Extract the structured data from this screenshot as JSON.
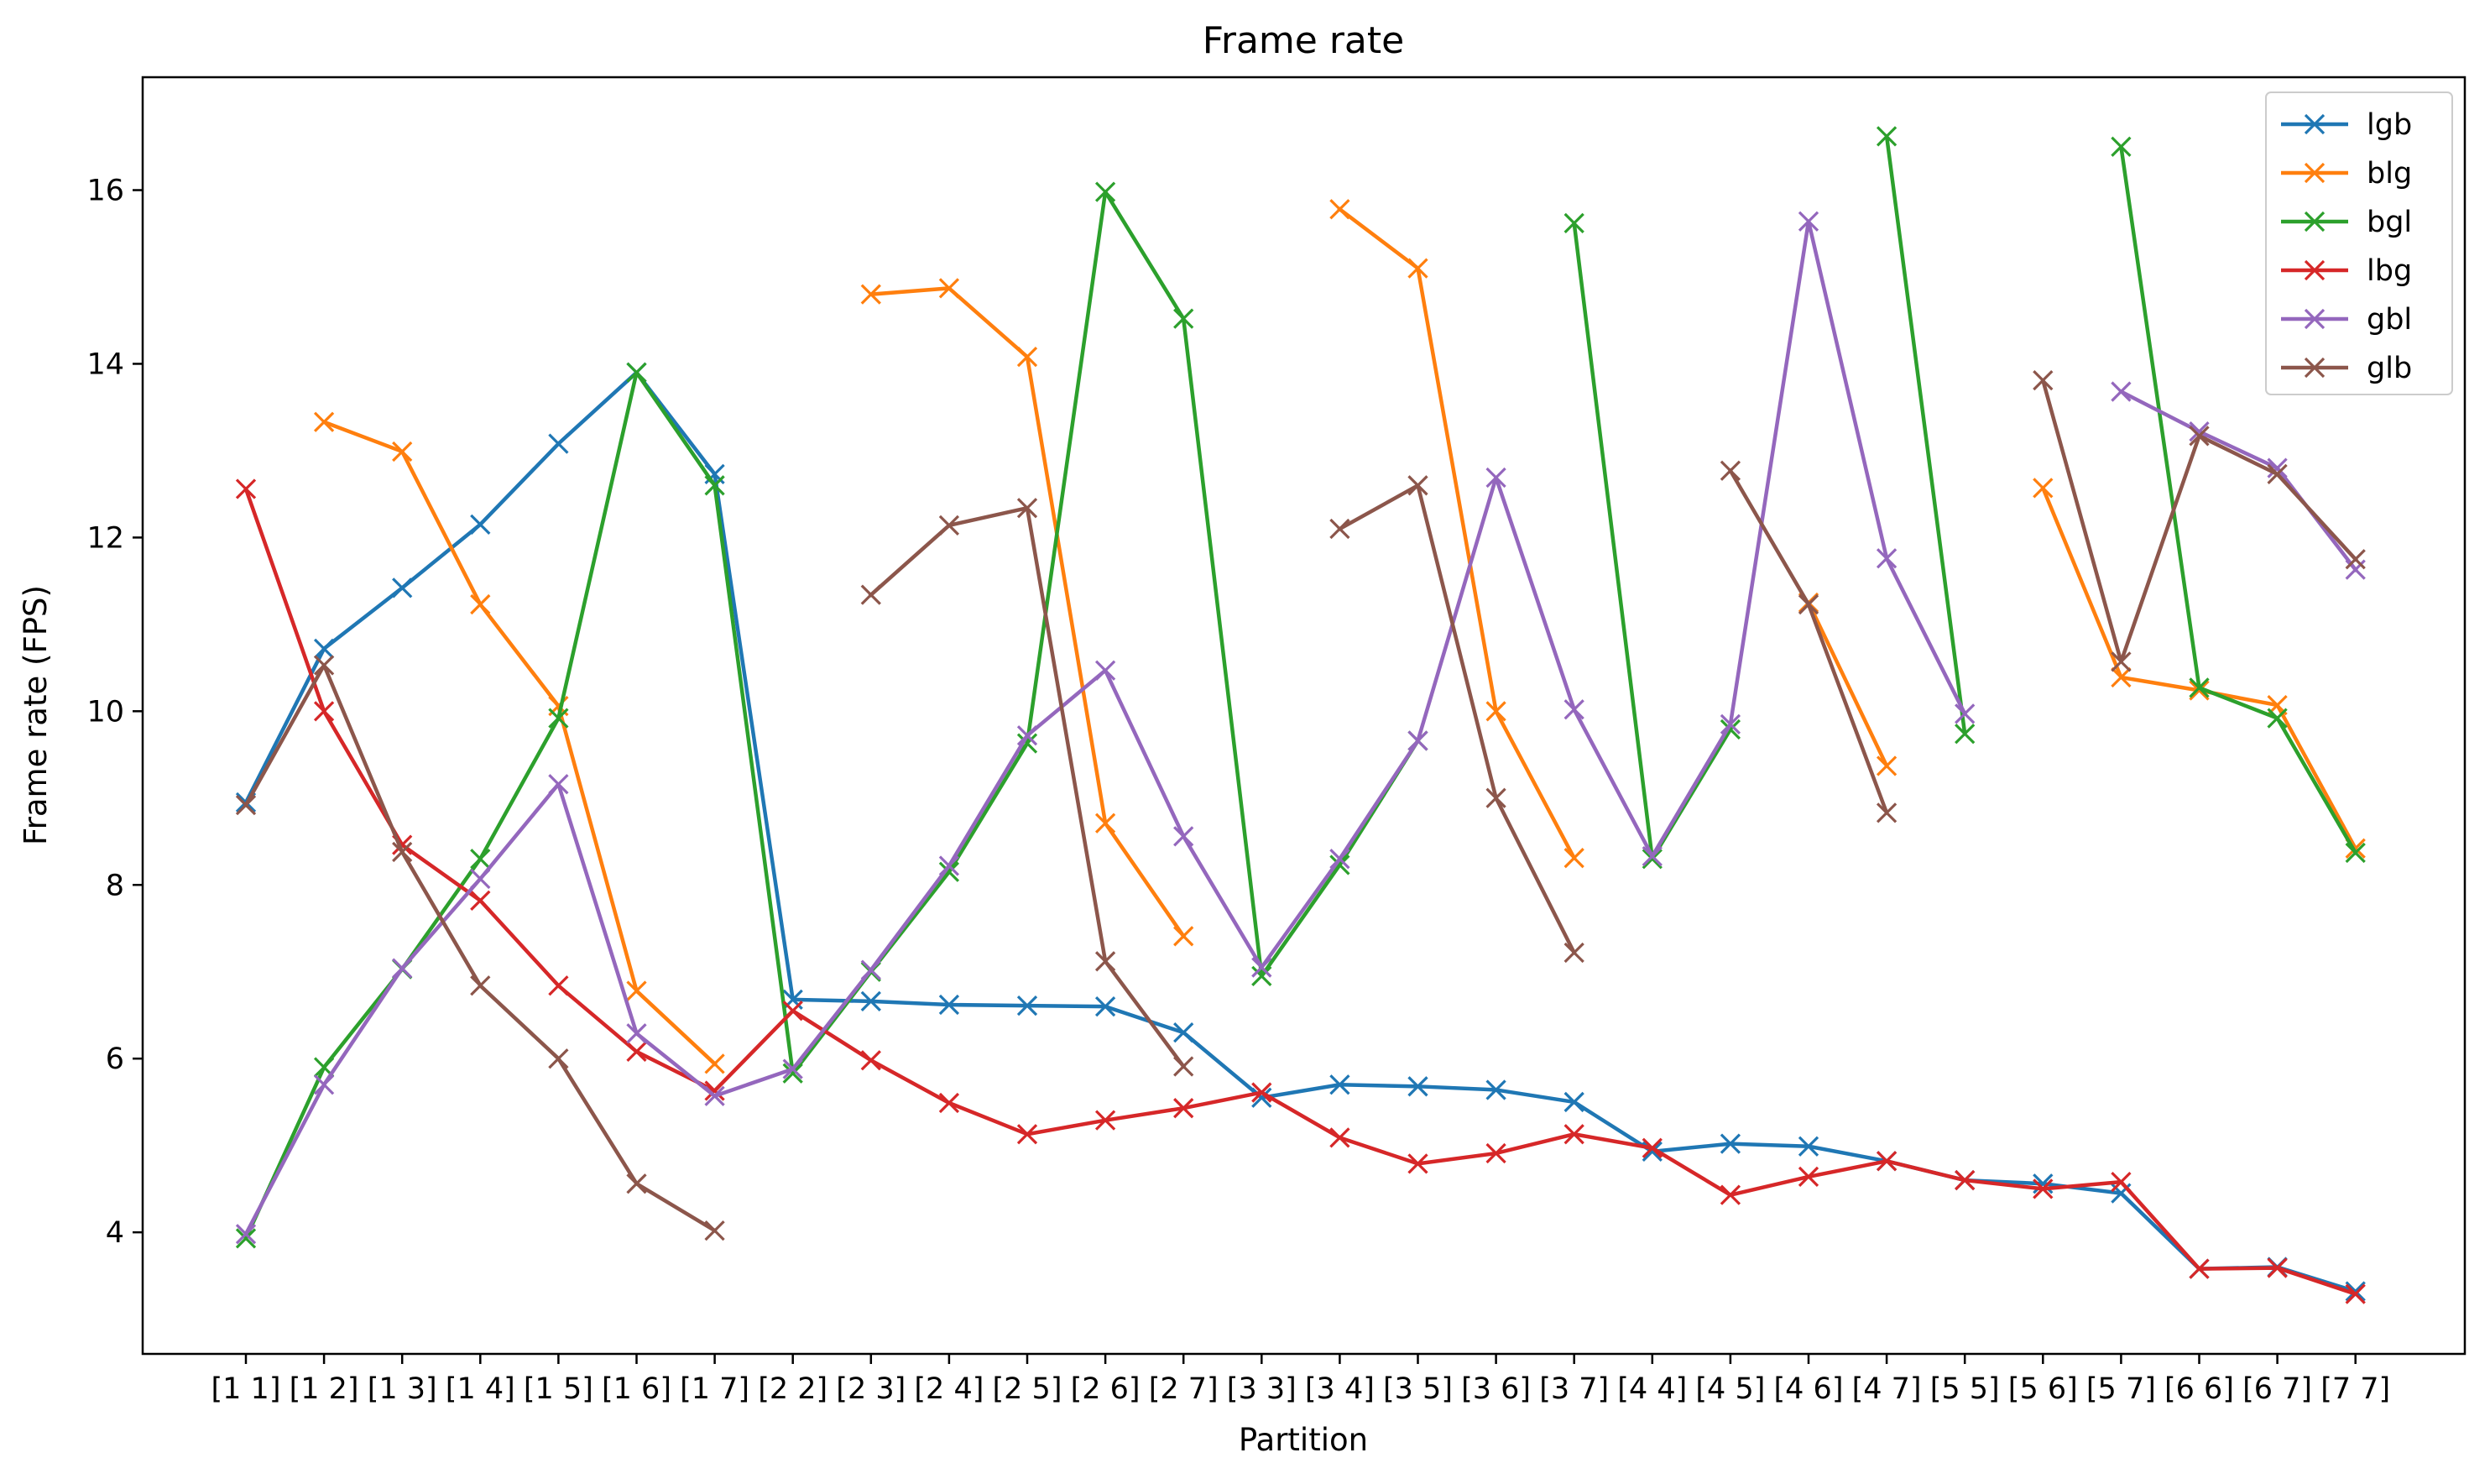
{
  "chart_data": {
    "type": "line",
    "title": "Frame rate",
    "xlabel": "Partition",
    "ylabel": "Frame rate (FPS)",
    "categories": [
      "[1 1]",
      "[1 2]",
      "[1 3]",
      "[1 4]",
      "[1 5]",
      "[1 6]",
      "[1 7]",
      "[2 2]",
      "[2 3]",
      "[2 4]",
      "[2 5]",
      "[2 6]",
      "[2 7]",
      "[3 3]",
      "[3 4]",
      "[3 5]",
      "[3 6]",
      "[3 7]",
      "[4 4]",
      "[4 5]",
      "[4 6]",
      "[4 7]",
      "[5 5]",
      "[5 6]",
      "[5 7]",
      "[6 6]",
      "[6 7]",
      "[7 7]"
    ],
    "ylim": [
      2.6,
      17.3
    ],
    "yticks": [
      4,
      6,
      8,
      10,
      12,
      14,
      16
    ],
    "grid": false,
    "legend_position": "top-right",
    "marker": "x",
    "series": [
      {
        "name": "lgb",
        "color": "#1f77b4",
        "values": [
          8.95,
          10.72,
          11.42,
          12.15,
          13.08,
          13.9,
          12.73,
          6.68,
          6.66,
          6.62,
          6.61,
          6.6,
          6.3,
          5.55,
          5.7,
          5.68,
          5.64,
          5.5,
          4.93,
          5.02,
          4.99,
          4.82,
          4.6,
          4.56,
          4.45,
          3.58,
          3.6,
          3.32
        ]
      },
      {
        "name": "blg",
        "color": "#ff7f0e",
        "values": [
          null,
          13.33,
          12.99,
          11.23,
          10.06,
          6.78,
          5.94,
          null,
          14.8,
          14.87,
          14.08,
          8.71,
          7.41,
          null,
          15.78,
          15.1,
          10.0,
          8.31,
          null,
          null,
          11.25,
          9.37,
          null,
          12.57,
          10.39,
          10.24,
          10.07,
          8.42
        ]
      },
      {
        "name": "bgl",
        "color": "#2ca02c",
        "values": [
          3.93,
          5.9,
          7.03,
          8.3,
          9.92,
          13.9,
          12.6,
          5.83,
          7.0,
          8.15,
          9.63,
          15.98,
          14.52,
          6.95,
          8.23,
          9.66,
          null,
          15.62,
          8.3,
          9.79,
          null,
          16.62,
          9.74,
          null,
          16.5,
          10.27,
          9.92,
          8.37
        ]
      },
      {
        "name": "lbg",
        "color": "#d62728",
        "values": [
          12.56,
          10.0,
          8.46,
          7.82,
          6.84,
          6.08,
          5.63,
          6.55,
          5.98,
          5.49,
          5.13,
          5.29,
          5.43,
          5.61,
          5.09,
          4.79,
          4.91,
          5.13,
          4.97,
          4.43,
          4.64,
          4.82,
          4.6,
          4.5,
          4.58,
          3.58,
          3.59,
          3.29
        ]
      },
      {
        "name": "gbl",
        "color": "#9467bd",
        "values": [
          3.98,
          5.7,
          7.04,
          8.07,
          9.16,
          6.29,
          5.57,
          5.88,
          7.02,
          8.22,
          9.72,
          10.47,
          8.56,
          7.05,
          8.3,
          9.66,
          12.69,
          10.02,
          8.33,
          9.85,
          15.64,
          11.76,
          9.97,
          null,
          13.68,
          13.22,
          12.8,
          11.63
        ]
      },
      {
        "name": "glb",
        "color": "#8c564b",
        "values": [
          8.92,
          10.53,
          8.38,
          6.84,
          6.0,
          4.56,
          4.02,
          null,
          11.34,
          12.14,
          12.34,
          7.12,
          5.91,
          null,
          12.1,
          12.6,
          9.0,
          7.22,
          null,
          12.77,
          11.23,
          8.83,
          null,
          13.81,
          10.57,
          13.17,
          12.73,
          11.75
        ]
      }
    ]
  }
}
